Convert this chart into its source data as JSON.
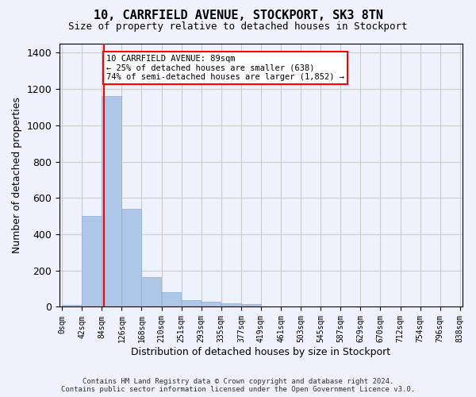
{
  "title": "10, CARRFIELD AVENUE, STOCKPORT, SK3 8TN",
  "subtitle": "Size of property relative to detached houses in Stockport",
  "xlabel": "Distribution of detached houses by size in Stockport",
  "ylabel": "Number of detached properties",
  "bar_values": [
    10,
    500,
    1160,
    540,
    165,
    80,
    35,
    28,
    18,
    15,
    0,
    0,
    0,
    0,
    0,
    0,
    0,
    0,
    0,
    0
  ],
  "bar_labels": [
    "0sqm",
    "42sqm",
    "84sqm",
    "126sqm",
    "168sqm",
    "210sqm",
    "251sqm",
    "293sqm",
    "335sqm",
    "377sqm",
    "419sqm",
    "461sqm",
    "503sqm",
    "545sqm",
    "587sqm",
    "629sqm",
    "670sqm",
    "712sqm",
    "754sqm",
    "796sqm",
    "838sqm"
  ],
  "bar_color": "#aec6e8",
  "bar_edge_color": "#8bafd4",
  "grid_color": "#cccccc",
  "background_color": "#eef2fc",
  "annotation_text": "10 CARRFIELD AVENUE: 89sqm\n← 25% of detached houses are smaller (638)\n74% of semi-detached houses are larger (1,852) →",
  "annotation_box_color": "white",
  "annotation_box_edge": "red",
  "property_line_x": 89,
  "ylim": [
    0,
    1450
  ],
  "yticks": [
    0,
    200,
    400,
    600,
    800,
    1000,
    1200,
    1400
  ],
  "footer_line1": "Contains HM Land Registry data © Crown copyright and database right 2024.",
  "footer_line2": "Contains public sector information licensed under the Open Government Licence v3.0.",
  "bin_width": 42
}
